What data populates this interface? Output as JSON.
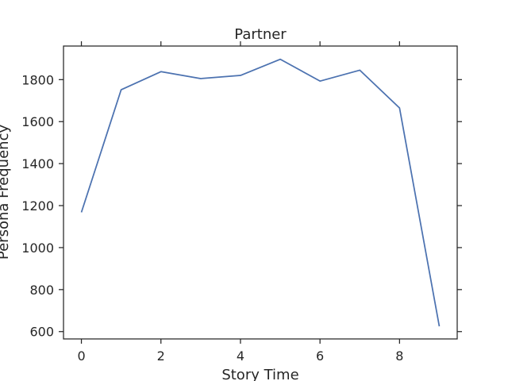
{
  "chart_data": {
    "type": "line",
    "title": "Partner",
    "xlabel": "Story Time",
    "ylabel": "Persona Frequency",
    "xlim": [
      -0.45,
      9.45
    ],
    "ylim": [
      565,
      1960
    ],
    "xticks": [
      0,
      2,
      4,
      6,
      8
    ],
    "yticks": [
      600,
      800,
      1000,
      1200,
      1400,
      1600,
      1800
    ],
    "x": [
      0,
      1,
      2,
      3,
      4,
      5,
      6,
      7,
      8,
      9
    ],
    "series": [
      {
        "values": [
          1168,
          1752,
          1838,
          1805,
          1820,
          1897,
          1793,
          1845,
          1665,
          625
        ]
      }
    ],
    "grid": false,
    "colors": {
      "line": "#4c72b0",
      "axes": "#262626"
    }
  }
}
